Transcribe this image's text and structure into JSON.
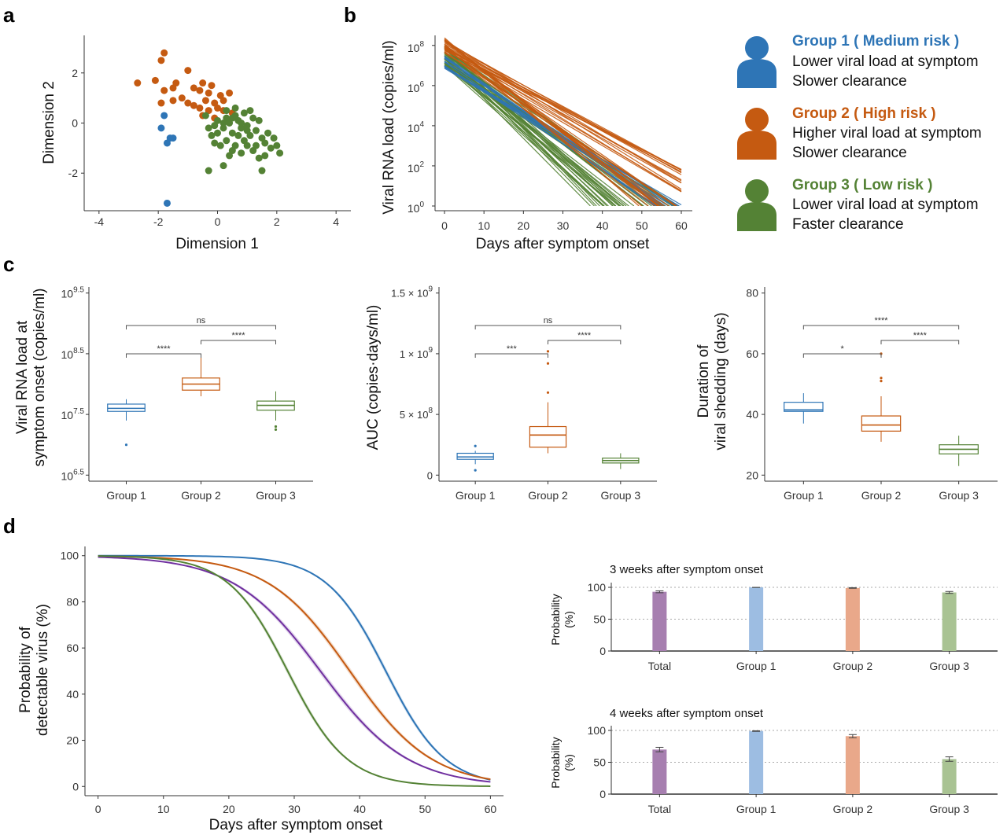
{
  "colors": {
    "group1": "#2E75B6",
    "group2": "#C55A11",
    "group3": "#548235",
    "total": "#7030A0"
  },
  "panel_labels": {
    "a": "a",
    "b": "b",
    "c": "c",
    "d": "d"
  },
  "legend": [
    {
      "name": "Group 1 ( Medium risk )",
      "line1": "Lower viral load at symptom",
      "line2": "Slower clearance",
      "color": "#2E75B6",
      "icon": "person-icon"
    },
    {
      "name": "Group 2 ( High risk )",
      "line1": "Higher viral load at symptom",
      "line2": "Slower clearance",
      "color": "#C55A11",
      "icon": "person-icon"
    },
    {
      "name": "Group 3 ( Low risk )",
      "line1": "Lower viral load at symptom",
      "line2": "Faster clearance",
      "color": "#548235",
      "icon": "person-icon"
    }
  ],
  "chart_data": [
    {
      "id": "a",
      "type": "scatter",
      "xlabel": "Dimension 1",
      "ylabel": "Dimension 2",
      "xlim": [
        -4.5,
        4.5
      ],
      "ylim": [
        -3.5,
        3.5
      ],
      "xticks": [
        "-4",
        "-2",
        "0",
        "2",
        "4"
      ],
      "xtick_values": [
        -4,
        -2,
        0,
        2,
        4
      ],
      "yticks": [
        "2",
        "0",
        "-2"
      ],
      "ytick_values": [
        2,
        0,
        -2
      ],
      "series": [
        {
          "group": "group1",
          "points": [
            [
              -1.8,
              0.3
            ],
            [
              -1.9,
              -0.2
            ],
            [
              -1.6,
              -0.6
            ],
            [
              -1.7,
              -0.8
            ],
            [
              -1.5,
              -0.6
            ],
            [
              -1.7,
              -3.2
            ]
          ]
        },
        {
          "group": "group2",
          "points": [
            [
              -2.7,
              1.6
            ],
            [
              -1.8,
              2.8
            ],
            [
              -1.9,
              2.5
            ],
            [
              -2.1,
              1.7
            ],
            [
              -1.8,
              1.3
            ],
            [
              -1.5,
              1.4
            ],
            [
              -1.9,
              0.8
            ],
            [
              -1.4,
              1.6
            ],
            [
              -1.2,
              1.0
            ],
            [
              -1.0,
              2.1
            ],
            [
              -0.8,
              1.4
            ],
            [
              -0.6,
              1.3
            ],
            [
              -0.5,
              1.6
            ],
            [
              -0.3,
              1.2
            ],
            [
              -0.2,
              1.5
            ],
            [
              -0.8,
              0.7
            ],
            [
              -0.6,
              0.6
            ],
            [
              -0.4,
              0.9
            ],
            [
              -0.1,
              0.8
            ],
            [
              0.0,
              0.6
            ],
            [
              0.2,
              0.5
            ],
            [
              -0.3,
              0.5
            ],
            [
              -0.1,
              0.2
            ],
            [
              0.4,
              1.2
            ],
            [
              0.2,
              0.9
            ],
            [
              0.5,
              0.4
            ],
            [
              -1.5,
              0.9
            ],
            [
              -1.0,
              0.8
            ],
            [
              -0.5,
              0.3
            ],
            [
              0.1,
              1.1
            ]
          ]
        },
        {
          "group": "group3",
          "points": [
            [
              -0.4,
              0.3
            ],
            [
              -0.1,
              -0.1
            ],
            [
              0.0,
              0.1
            ],
            [
              0.2,
              -0.2
            ],
            [
              0.3,
              0.2
            ],
            [
              0.4,
              0.0
            ],
            [
              0.5,
              -0.4
            ],
            [
              0.6,
              0.3
            ],
            [
              0.7,
              0.1
            ],
            [
              0.8,
              -0.2
            ],
            [
              0.9,
              0.4
            ],
            [
              1.0,
              -0.1
            ],
            [
              1.1,
              -0.5
            ],
            [
              1.2,
              0.2
            ],
            [
              1.3,
              -0.3
            ],
            [
              1.4,
              0.1
            ],
            [
              1.5,
              -0.6
            ],
            [
              1.6,
              -0.8
            ],
            [
              1.8,
              -1.0
            ],
            [
              2.0,
              -0.9
            ],
            [
              2.1,
              -1.2
            ],
            [
              1.5,
              -1.9
            ],
            [
              1.4,
              -1.4
            ],
            [
              1.0,
              -0.9
            ],
            [
              0.8,
              -1.2
            ],
            [
              0.6,
              -0.9
            ],
            [
              0.3,
              -0.7
            ],
            [
              0.1,
              -0.9
            ],
            [
              -0.1,
              -0.8
            ],
            [
              -0.2,
              -0.5
            ],
            [
              0.4,
              -1.3
            ],
            [
              0.2,
              -1.7
            ],
            [
              -0.3,
              -1.9
            ],
            [
              0.9,
              -0.7
            ],
            [
              1.2,
              -1.1
            ],
            [
              0.7,
              -0.5
            ],
            [
              0.5,
              -1.1
            ],
            [
              1.7,
              -0.4
            ],
            [
              1.9,
              -0.6
            ],
            [
              1.1,
              0.5
            ],
            [
              0.6,
              0.6
            ],
            [
              0.3,
              0.5
            ],
            [
              0.0,
              -0.4
            ],
            [
              -0.3,
              -0.2
            ],
            [
              0.8,
              0.0
            ],
            [
              1.3,
              -0.9
            ],
            [
              1.6,
              -1.3
            ],
            [
              0.2,
              0.0
            ],
            [
              0.5,
              0.2
            ],
            [
              1.0,
              -0.3
            ]
          ]
        }
      ]
    },
    {
      "id": "b",
      "type": "line",
      "xlabel": "Days after symptom onset",
      "ylabel": "Viral RNA load (copies/ml)",
      "xlim": [
        0,
        60
      ],
      "xticks": [
        "0",
        "10",
        "20",
        "30",
        "40",
        "50",
        "60"
      ],
      "xtick_values": [
        0,
        10,
        20,
        30,
        40,
        50,
        60
      ],
      "ylog10_lim": [
        0,
        8.5
      ],
      "yticks": [
        "10",
        "10",
        "10",
        "10",
        "10"
      ],
      "ytick_exponents": [
        "8",
        "6",
        "4",
        "2",
        "0"
      ],
      "ytick_log10": [
        8,
        6,
        4,
        2,
        0
      ],
      "series": [
        {
          "group": "group3",
          "start_log10_range": [
            6.9,
            8.0
          ],
          "end_day_range": [
            36,
            60
          ],
          "count": 45
        },
        {
          "group": "group1",
          "start_log10_range": [
            6.8,
            7.6
          ],
          "end_day_range": [
            53,
            62
          ],
          "count": 12
        },
        {
          "group": "group2",
          "start_log10_range": [
            7.6,
            8.4
          ],
          "end_day_range": [
            48,
            80
          ],
          "count": 30
        }
      ]
    },
    {
      "id": "c1",
      "type": "box",
      "ylabel_line1": "Viral RNA load at",
      "ylabel_line2": "symptom onset (copies/ml)",
      "categories": [
        "Group 1",
        "Group 2",
        "Group 3"
      ],
      "ylim": [
        6.4,
        9.6
      ],
      "yticks": [
        "10",
        "10",
        "10"
      ],
      "ytick_exponents": [
        "9.5",
        "8.5",
        "7.5"
      ],
      "ytick_values": [
        9.5,
        8.5,
        7.5
      ],
      "extra_tick": {
        "label": "10",
        "exponent": "6.5",
        "value": 6.5
      },
      "boxes": [
        {
          "min": 7.4,
          "q1": 7.55,
          "median": 7.6,
          "q3": 7.67,
          "max": 7.75,
          "outliers": [
            7.0
          ]
        },
        {
          "min": 7.8,
          "q1": 7.9,
          "median": 8.0,
          "q3": 8.1,
          "max": 8.45,
          "outliers": []
        },
        {
          "min": 7.4,
          "q1": 7.57,
          "median": 7.65,
          "q3": 7.72,
          "max": 7.88,
          "outliers": [
            7.3,
            7.25
          ]
        }
      ],
      "comparisons": [
        {
          "from": 0,
          "to": 2,
          "label": "ns",
          "level": 2
        },
        {
          "from": 1,
          "to": 2,
          "label": "****",
          "level": 1
        },
        {
          "from": 0,
          "to": 1,
          "label": "****",
          "level": 0
        }
      ]
    },
    {
      "id": "c2",
      "type": "box",
      "ylabel": "AUC (copies·days/ml)",
      "categories": [
        "Group 1",
        "Group 2",
        "Group 3"
      ],
      "ylim": [
        -0.05,
        1.55
      ],
      "yticks": [
        "1.5 × 10",
        "1 × 10",
        "5 × 10",
        "0"
      ],
      "ytick_exponents": [
        "9",
        "9",
        "8",
        ""
      ],
      "ytick_values": [
        1.5,
        1.0,
        0.5,
        0
      ],
      "value_unit": "1e9 copies·days/ml",
      "boxes": [
        {
          "min": 0.09,
          "q1": 0.13,
          "median": 0.15,
          "q3": 0.18,
          "max": 0.2,
          "outliers": [
            0.24,
            0.04
          ]
        },
        {
          "min": 0.18,
          "q1": 0.23,
          "median": 0.33,
          "q3": 0.4,
          "max": 0.6,
          "outliers": [
            0.68,
            0.92,
            1.02
          ]
        },
        {
          "min": 0.05,
          "q1": 0.1,
          "median": 0.12,
          "q3": 0.14,
          "max": 0.18,
          "outliers": []
        }
      ],
      "comparisons": [
        {
          "from": 0,
          "to": 2,
          "label": "ns",
          "level": 2
        },
        {
          "from": 1,
          "to": 2,
          "label": "****",
          "level": 1
        },
        {
          "from": 0,
          "to": 1,
          "label": "***",
          "level": 0
        }
      ]
    },
    {
      "id": "c3",
      "type": "box",
      "ylabel_line1": "Duration of",
      "ylabel_line2": "viral shedding (days)",
      "categories": [
        "Group 1",
        "Group 2",
        "Group 3"
      ],
      "ylim": [
        18,
        82
      ],
      "yticks": [
        "80",
        "60",
        "40",
        "20"
      ],
      "ytick_values": [
        80,
        60,
        40,
        20
      ],
      "boxes": [
        {
          "min": 37,
          "q1": 41,
          "median": 41.5,
          "q3": 44,
          "max": 47,
          "outliers": []
        },
        {
          "min": 31,
          "q1": 34.5,
          "median": 36.5,
          "q3": 39.5,
          "max": 46,
          "outliers": [
            51,
            52,
            60
          ]
        },
        {
          "min": 23,
          "q1": 27,
          "median": 28.5,
          "q3": 30,
          "max": 33,
          "outliers": []
        }
      ],
      "comparisons": [
        {
          "from": 0,
          "to": 2,
          "label": "****",
          "level": 2
        },
        {
          "from": 1,
          "to": 2,
          "label": "****",
          "level": 1
        },
        {
          "from": 0,
          "to": 1,
          "label": "*",
          "level": 0
        }
      ]
    },
    {
      "id": "d1",
      "type": "line",
      "xlabel": "Days after symptom onset",
      "ylabel_line1": "Probability of",
      "ylabel_line2": "detectable virus (%)",
      "xlim": [
        -2,
        62
      ],
      "xticks": [
        "0",
        "10",
        "20",
        "30",
        "40",
        "50",
        "60"
      ],
      "xtick_values": [
        0,
        10,
        20,
        30,
        40,
        50,
        60
      ],
      "ylim": [
        -4,
        104
      ],
      "yticks": [
        "100",
        "80",
        "60",
        "40",
        "20",
        "0"
      ],
      "ytick_values": [
        100,
        80,
        60,
        40,
        20,
        0
      ],
      "series": [
        {
          "group": "group1",
          "midpoint_day": 44,
          "slope": 0.22
        },
        {
          "group": "group2",
          "midpoint_day": 38.5,
          "slope": 0.16
        },
        {
          "group": "total",
          "midpoint_day": 34,
          "slope": 0.15
        },
        {
          "group": "group3",
          "midpoint_day": 29,
          "slope": 0.22
        }
      ]
    },
    {
      "id": "d2",
      "type": "bar",
      "title": "3 weeks after symptom onset",
      "ylabel_line1": "Probability",
      "ylabel_line2": "(%)",
      "categories": [
        "Total",
        "Group 1",
        "Group 2",
        "Group 3"
      ],
      "groups": [
        "total",
        "group1",
        "group2",
        "group3"
      ],
      "values": [
        93,
        100,
        99,
        92
      ],
      "errors": [
        1.5,
        0.3,
        0.5,
        1.5
      ],
      "ylim": [
        0,
        100
      ],
      "yticks": [
        "100",
        "50",
        "0"
      ],
      "ytick_values": [
        100,
        50,
        0
      ]
    },
    {
      "id": "d3",
      "type": "bar",
      "title": "4 weeks after symptom onset",
      "ylabel_line1": "Probability",
      "ylabel_line2": "(%)",
      "categories": [
        "Total",
        "Group 1",
        "Group 2",
        "Group 3"
      ],
      "groups": [
        "total",
        "group1",
        "group2",
        "group3"
      ],
      "values": [
        70,
        99,
        91,
        55
      ],
      "errors": [
        3.5,
        0.5,
        2.5,
        3.5
      ],
      "ylim": [
        0,
        100
      ],
      "yticks": [
        "100",
        "50",
        "0"
      ],
      "ytick_values": [
        100,
        50,
        0
      ]
    }
  ]
}
